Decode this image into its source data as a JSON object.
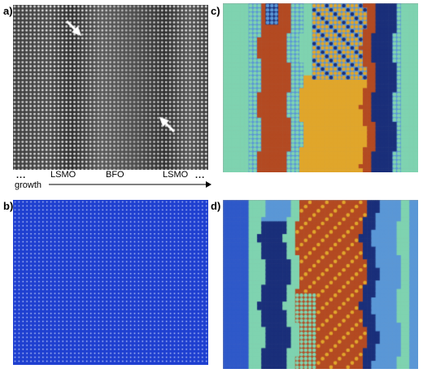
{
  "panels": {
    "a": {
      "label": "a)"
    },
    "b": {
      "label": "b)"
    },
    "c": {
      "label": "c)"
    },
    "d": {
      "label": "d)"
    }
  },
  "axis": {
    "dots_left": "...",
    "lsmo_left": "LSMO",
    "bfo": "BFO",
    "lsmo_right": "LSMO",
    "dots_right": "...",
    "growth": "growth"
  },
  "colors": {
    "stem_bg": "#5a5a5a",
    "stem_atom": "#e6e6e6",
    "map_b_bg": "#1e3fd0",
    "map_b_dot": "#d7e2ff",
    "teal": "#7fd3b0",
    "light_blue": "#5a97d6",
    "rust": "#b34a22",
    "gold": "#e0a62b",
    "navy": "#1a2f7a",
    "blue": "#2f59c9",
    "grey_frame": "#9a9a9a"
  }
}
